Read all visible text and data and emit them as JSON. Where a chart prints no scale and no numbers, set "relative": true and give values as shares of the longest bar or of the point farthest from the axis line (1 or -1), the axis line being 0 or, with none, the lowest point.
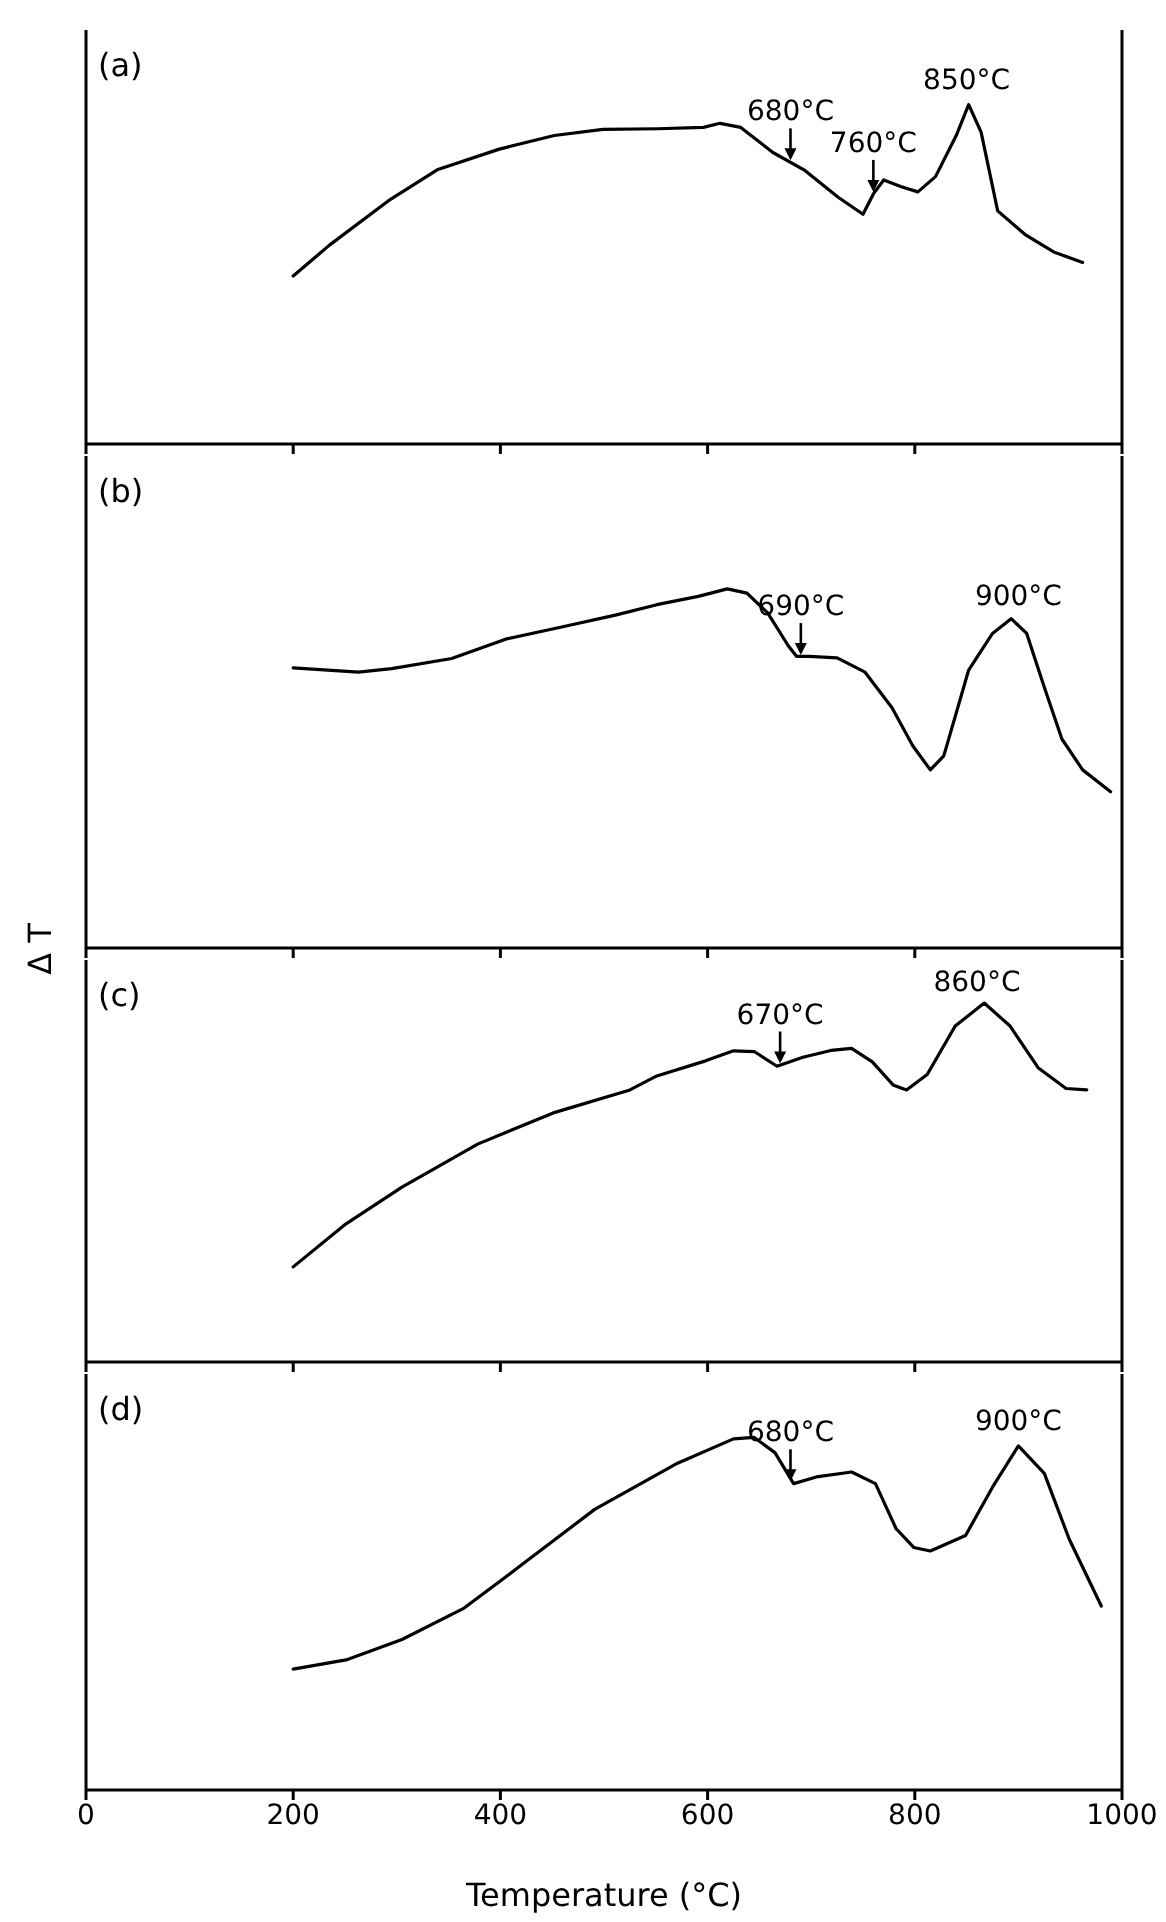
{
  "chart_data": [
    {
      "type": "line",
      "title": "(a)",
      "color": "#000000",
      "relative": true,
      "xlim": [
        0,
        1000
      ],
      "xticks": [
        0,
        200,
        400,
        600,
        800,
        1000
      ],
      "tick_labels": false,
      "x": [
        200,
        235,
        292,
        339,
        399,
        452,
        499,
        552,
        596,
        612,
        632,
        663,
        693,
        726,
        750,
        760,
        770,
        787,
        803,
        820,
        840,
        852,
        864,
        880,
        907,
        934,
        962
      ],
      "values": [
        0.495,
        0.586,
        0.717,
        0.808,
        0.869,
        0.909,
        0.927,
        0.929,
        0.933,
        0.945,
        0.933,
        0.859,
        0.808,
        0.727,
        0.677,
        0.737,
        0.778,
        0.758,
        0.743,
        0.788,
        0.909,
        1,
        0.919,
        0.687,
        0.616,
        0.566,
        0.535
      ],
      "annotations": [
        {
          "text": "680°C",
          "x": 680,
          "y": 0.83
        },
        {
          "text": "760°C",
          "x": 760,
          "y": 0.737
        },
        {
          "text": "850°C",
          "x": 850,
          "y": 1
        }
      ]
    },
    {
      "type": "line",
      "title": "(b)",
      "ylabel": "Δ T",
      "color": "#000000",
      "relative": true,
      "xlim": [
        0,
        1000
      ],
      "xticks": [
        0,
        200,
        400,
        600,
        800,
        1000
      ],
      "tick_labels": false,
      "x": [
        200,
        263,
        295,
        353,
        405,
        458,
        511,
        551,
        591,
        619,
        638,
        658,
        678,
        686,
        698,
        725,
        752,
        778,
        798,
        815,
        828,
        852,
        875,
        893,
        908,
        925,
        942,
        962,
        989
      ],
      "values": [
        0.78,
        0.768,
        0.778,
        0.806,
        0.86,
        0.893,
        0.927,
        0.956,
        0.979,
        1,
        0.988,
        0.933,
        0.841,
        0.812,
        0.812,
        0.808,
        0.768,
        0.669,
        0.563,
        0.496,
        0.535,
        0.774,
        0.876,
        0.917,
        0.876,
        0.726,
        0.582,
        0.496,
        0.435
      ],
      "annotations": [
        {
          "text": "690°C",
          "x": 690,
          "y": 0.81
        },
        {
          "text": "900°C",
          "x": 900,
          "y": 0.91
        }
      ]
    },
    {
      "type": "line",
      "title": "(c)",
      "color": "#000000",
      "relative": true,
      "xlim": [
        0,
        1000
      ],
      "xticks": [
        0,
        200,
        400,
        600,
        800,
        1000
      ],
      "tick_labels": false,
      "x": [
        200,
        251,
        305,
        378,
        451,
        525,
        551,
        598,
        625,
        645,
        667,
        692,
        719,
        739,
        759,
        779,
        792,
        812,
        839,
        867,
        892,
        919,
        946,
        966
      ],
      "values": [
        0.265,
        0.385,
        0.487,
        0.607,
        0.694,
        0.758,
        0.797,
        0.839,
        0.867,
        0.865,
        0.824,
        0.849,
        0.868,
        0.874,
        0.836,
        0.772,
        0.758,
        0.801,
        0.936,
        1,
        0.936,
        0.82,
        0.762,
        0.758
      ],
      "annotations": [
        {
          "text": "670°C",
          "x": 670,
          "y": 0.826
        },
        {
          "text": "860°C",
          "x": 860,
          "y": 0.99
        }
      ]
    },
    {
      "type": "line",
      "title": "(d)",
      "xlabel": "Temperature (°C)",
      "color": "#000000",
      "relative": true,
      "xlim": [
        0,
        1000
      ],
      "xticks": [
        0,
        200,
        400,
        600,
        800,
        1000
      ],
      "tick_labels": "x",
      "x": [
        200,
        251,
        305,
        365,
        418,
        491,
        571,
        625,
        645,
        665,
        683,
        705,
        739,
        762,
        782,
        799,
        815,
        849,
        875,
        900,
        925,
        949,
        980
      ],
      "values": [
        0.343,
        0.369,
        0.427,
        0.516,
        0.633,
        0.796,
        0.927,
        0.996,
        1,
        0.957,
        0.869,
        0.888,
        0.902,
        0.869,
        0.741,
        0.688,
        0.678,
        0.722,
        0.859,
        0.976,
        0.898,
        0.712,
        0.522
      ],
      "annotations": [
        {
          "text": "680°C",
          "x": 680,
          "y": 0.87
        },
        {
          "text": "900°C",
          "x": 900,
          "y": 0.976
        }
      ]
    }
  ]
}
